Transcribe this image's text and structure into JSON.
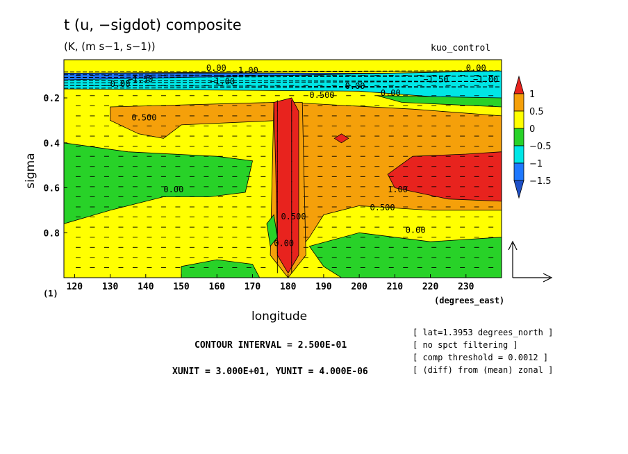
{
  "chart_data": {
    "type": "heatmap",
    "title": "t (u, −sigdot) composite",
    "subtitle": "(K, (m s−1, s−1))",
    "run_name": "kuo_control",
    "xlabel": "longitude",
    "ylabel": "sigma",
    "x_units_label": "(degrees_east)",
    "y_units_label": "(1)",
    "xlim": [
      117,
      240
    ],
    "ylim": [
      1.0,
      0.03
    ],
    "x_ticks": [
      120,
      130,
      140,
      150,
      160,
      170,
      180,
      190,
      200,
      210,
      220,
      230
    ],
    "x_tick_labels": [
      "120",
      "130",
      "140",
      "150",
      "160",
      "170",
      "180",
      "190",
      "200",
      "210",
      "220",
      "230"
    ],
    "y_ticks": [
      0.2,
      0.4,
      0.6,
      0.8
    ],
    "y_tick_labels": [
      "0.2",
      "0.4",
      "0.6",
      "0.8"
    ],
    "colorbar": {
      "labels": [
        "1",
        "0.5",
        "0",
        "−0.5",
        "−1",
        "−1.5"
      ],
      "bands": [
        {
          "min": 1.0,
          "color": "#e8231e"
        },
        {
          "min": 0.5,
          "max": 1.0,
          "color": "#f5a00a"
        },
        {
          "min": 0.0,
          "max": 0.5,
          "color": "#ffff00"
        },
        {
          "min": -0.5,
          "max": 0.0,
          "color": "#28d228"
        },
        {
          "min": -1.0,
          "max": -0.5,
          "color": "#00e6e6"
        },
        {
          "min": -1.5,
          "max": -1.0,
          "color": "#1e78ff"
        },
        {
          "max": -1.5,
          "color": "#1e50c8"
        }
      ]
    },
    "regions": [
      {
        "name": "upper-negative-band",
        "value": -1.5,
        "points": [
          [
            117,
            0.09
          ],
          [
            240,
            0.09
          ],
          [
            240,
            0.14
          ],
          [
            117,
            0.14
          ]
        ]
      },
      {
        "name": "upper-cyan-band",
        "value": -0.75,
        "points": [
          [
            117,
            0.12
          ],
          [
            240,
            0.08
          ],
          [
            240,
            0.22
          ],
          [
            225,
            0.2
          ],
          [
            200,
            0.17
          ],
          [
            117,
            0.16
          ]
        ]
      },
      {
        "name": "upper-green-strip",
        "value": -0.25,
        "points": [
          [
            205,
            0.19
          ],
          [
            240,
            0.2
          ],
          [
            240,
            0.24
          ],
          [
            212,
            0.22
          ]
        ]
      },
      {
        "name": "top-yellow-strip",
        "value": 0.25,
        "points": [
          [
            117,
            0.03
          ],
          [
            240,
            0.03
          ],
          [
            240,
            0.08
          ],
          [
            117,
            0.09
          ]
        ]
      },
      {
        "name": "orange-upper-west",
        "value": 0.75,
        "points": [
          [
            130,
            0.24
          ],
          [
            176,
            0.22
          ],
          [
            178,
            0.3
          ],
          [
            150,
            0.32
          ],
          [
            145,
            0.38
          ],
          [
            138,
            0.36
          ],
          [
            130,
            0.3
          ]
        ]
      },
      {
        "name": "orange-east-layer",
        "value": 0.75,
        "points": [
          [
            180,
            0.22
          ],
          [
            215,
            0.25
          ],
          [
            240,
            0.28
          ],
          [
            240,
            0.7
          ],
          [
            220,
            0.7
          ],
          [
            200,
            0.68
          ],
          [
            190,
            0.72
          ],
          [
            186,
            0.82
          ],
          [
            182,
            0.9
          ],
          [
            180,
            0.3
          ]
        ]
      },
      {
        "name": "orange-column",
        "value": 0.75,
        "points": [
          [
            176,
            0.22
          ],
          [
            184,
            0.22
          ],
          [
            185,
            0.9
          ],
          [
            180,
            1.0
          ],
          [
            175,
            0.9
          ]
        ]
      },
      {
        "name": "red-column",
        "value": 1.25,
        "points": [
          [
            176,
            0.22
          ],
          [
            181,
            0.2
          ],
          [
            183,
            0.26
          ],
          [
            183,
            0.9
          ],
          [
            180,
            0.98
          ],
          [
            177,
            0.9
          ],
          [
            176.5,
            0.5
          ]
        ]
      },
      {
        "name": "red-east-blob",
        "value": 1.25,
        "points": [
          [
            208,
            0.54
          ],
          [
            215,
            0.46
          ],
          [
            230,
            0.45
          ],
          [
            240,
            0.44
          ],
          [
            240,
            0.66
          ],
          [
            225,
            0.65
          ],
          [
            210,
            0.6
          ]
        ]
      },
      {
        "name": "red-small-spot",
        "value": 1.25,
        "points": [
          [
            193,
            0.38
          ],
          [
            195,
            0.36
          ],
          [
            197,
            0.38
          ],
          [
            195,
            0.4
          ]
        ]
      },
      {
        "name": "green-west-layer",
        "value": -0.25,
        "points": [
          [
            117,
            0.4
          ],
          [
            135,
            0.44
          ],
          [
            160,
            0.46
          ],
          [
            170,
            0.48
          ],
          [
            168,
            0.62
          ],
          [
            158,
            0.64
          ],
          [
            145,
            0.64
          ],
          [
            130,
            0.7
          ],
          [
            117,
            0.76
          ]
        ]
      },
      {
        "name": "green-east-lower",
        "value": -0.25,
        "points": [
          [
            186,
            0.86
          ],
          [
            200,
            0.8
          ],
          [
            220,
            0.84
          ],
          [
            240,
            0.82
          ],
          [
            240,
            1.0
          ],
          [
            195,
            1.0
          ],
          [
            190,
            0.95
          ]
        ]
      },
      {
        "name": "green-bottom-mid",
        "value": -0.25,
        "points": [
          [
            150,
            0.95
          ],
          [
            160,
            0.92
          ],
          [
            170,
            0.94
          ],
          [
            172,
            1.0
          ],
          [
            150,
            1.0
          ]
        ]
      },
      {
        "name": "green-column-edge",
        "value": -0.25,
        "points": [
          [
            174,
            0.76
          ],
          [
            176,
            0.72
          ],
          [
            177,
            0.82
          ],
          [
            175,
            0.86
          ]
        ]
      }
    ],
    "contour_labels": [
      {
        "text": "0.00",
        "x": 157,
        "y": 0.08
      },
      {
        "text": "1.00",
        "x": 166,
        "y": 0.09
      },
      {
        "text": "0.00",
        "x": 230,
        "y": 0.08
      },
      {
        "text": "−1.50",
        "x": 135,
        "y": 0.13
      },
      {
        "text": "−1.00",
        "x": 158,
        "y": 0.14
      },
      {
        "text": "−1.50",
        "x": 218,
        "y": 0.13
      },
      {
        "text": "−1.00",
        "x": 232,
        "y": 0.13
      },
      {
        "text": "0.00",
        "x": 130,
        "y": 0.15
      },
      {
        "text": "0.00",
        "x": 196,
        "y": 0.16
      },
      {
        "text": "0.00",
        "x": 206,
        "y": 0.19
      },
      {
        "text": "0.500",
        "x": 186,
        "y": 0.2
      },
      {
        "text": "0.500",
        "x": 136,
        "y": 0.3
      },
      {
        "text": "0.00",
        "x": 145,
        "y": 0.62
      },
      {
        "text": "1.00",
        "x": 208,
        "y": 0.62
      },
      {
        "text": "0.500",
        "x": 203,
        "y": 0.7
      },
      {
        "text": "0.00",
        "x": 213,
        "y": 0.8
      },
      {
        "text": "0.00",
        "x": 176,
        "y": 0.86
      },
      {
        "text": "0.500",
        "x": 178,
        "y": 0.74
      }
    ],
    "vector_reference": {
      "xunit": 30,
      "yunit": 4e-06
    }
  },
  "footer": {
    "contour_interval": "CONTOUR INTERVAL = 2.500E-01",
    "units_line": "XUNIT = 3.000E+01, YUNIT = 4.000E-06"
  },
  "meta_lines": [
    "[ lat=1.3953 degrees_north ]",
    "[ no spct filtering ]",
    "[ comp threshold = 0.0012 ]",
    "[ (diff) from (mean) zonal ]"
  ]
}
